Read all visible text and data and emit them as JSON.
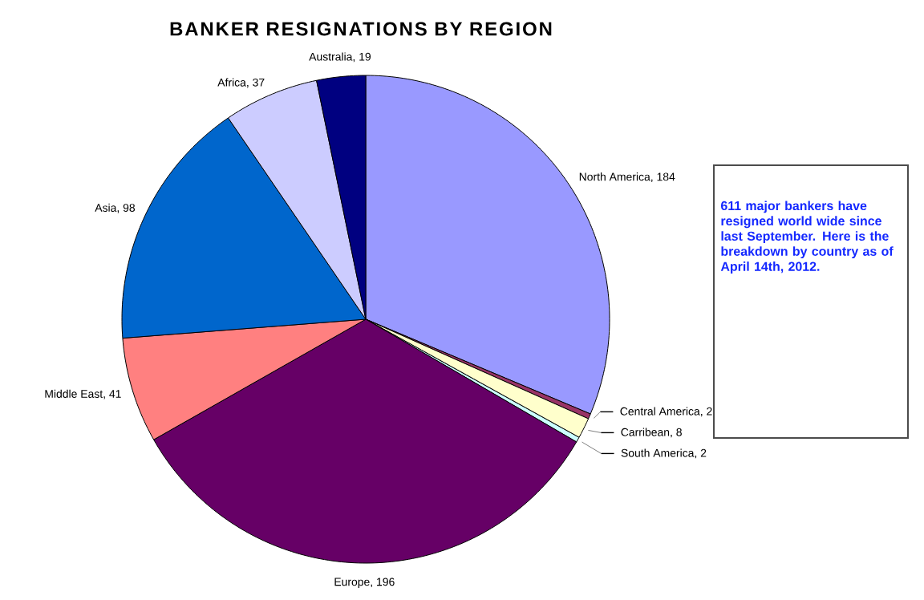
{
  "chart_data": {
    "type": "pie",
    "title": "BANKER RESIGNATIONS BY REGION",
    "categories": [
      "North America",
      "Central America",
      "Carribean",
      "South America",
      "Europe",
      "Middle East",
      "Asia",
      "Africa",
      "Australia"
    ],
    "values": [
      184,
      2,
      8,
      2,
      196,
      41,
      98,
      37,
      19
    ],
    "colors": [
      "#9999ff",
      "#993366",
      "#ffffcc",
      "#ccffff",
      "#660066",
      "#ff8080",
      "#0066cc",
      "#ccccff",
      "#000080"
    ],
    "data_labels": true,
    "value_labels": [
      ", 184",
      ", 2",
      ", 8",
      ", 2",
      ", 196",
      ", 41",
      ", 98",
      ", 37",
      ", 19"
    ],
    "annotations": [
      "611 major bankers have resigned world wide since last September.  Here is the breakdown by country as of April 14th, 2012."
    ]
  }
}
